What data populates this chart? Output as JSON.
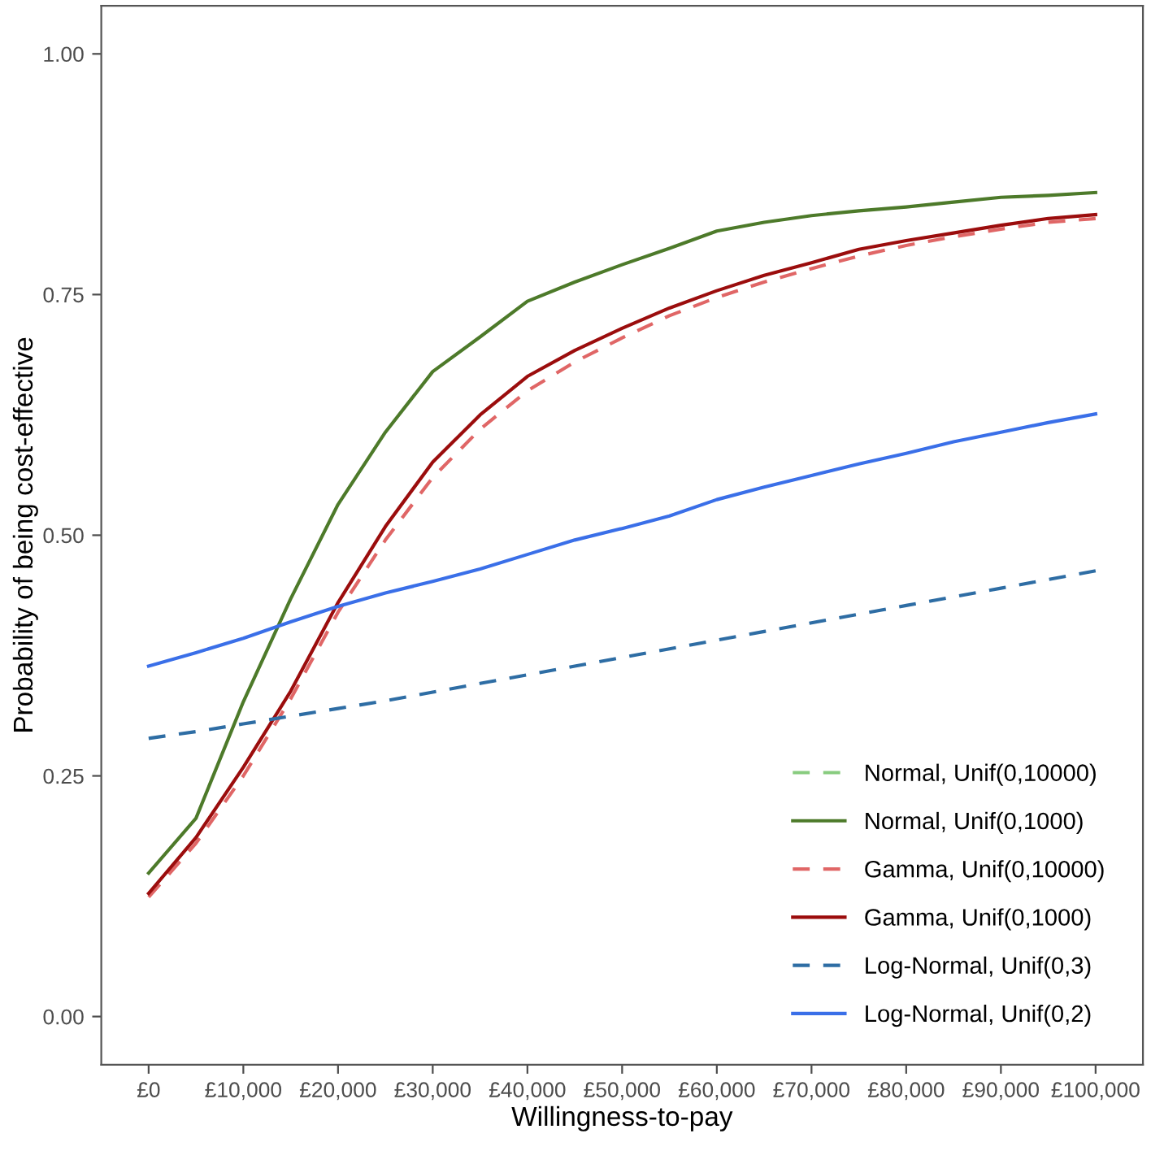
{
  "chart_data": {
    "type": "line",
    "xlabel": "Willingness-to-pay",
    "ylabel": "Probability of being cost-effective",
    "x": [
      0,
      5000,
      10000,
      15000,
      20000,
      25000,
      30000,
      35000,
      40000,
      45000,
      50000,
      55000,
      60000,
      65000,
      70000,
      75000,
      80000,
      85000,
      90000,
      95000,
      100000
    ],
    "xlim": [
      -5000,
      105000
    ],
    "xticks": [
      {
        "value": 0,
        "label": "£0"
      },
      {
        "value": 10000,
        "label": "£10,000"
      },
      {
        "value": 20000,
        "label": "£20,000"
      },
      {
        "value": 30000,
        "label": "£30,000"
      },
      {
        "value": 40000,
        "label": "£40,000"
      },
      {
        "value": 50000,
        "label": "£50,000"
      },
      {
        "value": 60000,
        "label": "£60,000"
      },
      {
        "value": 70000,
        "label": "£70,000"
      },
      {
        "value": 80000,
        "label": "£80,000"
      },
      {
        "value": 90000,
        "label": "£90,000"
      },
      {
        "value": 100000,
        "label": "£100,000"
      }
    ],
    "ylim": [
      -0.05,
      1.05
    ],
    "yticks": [
      {
        "value": 0,
        "label": "0.00"
      },
      {
        "value": 0.25,
        "label": "0.25"
      },
      {
        "value": 0.5,
        "label": "0.50"
      },
      {
        "value": 0.75,
        "label": "0.75"
      },
      {
        "value": 1,
        "label": "1.00"
      }
    ],
    "grid": false,
    "legend": "bottom right",
    "marker": "none",
    "series": [
      {
        "name": "Normal, Unif(0,10000)",
        "color": "#88cc7f",
        "line_style": "dashed",
        "values": [
          null,
          null,
          null,
          null,
          null,
          null,
          null,
          null,
          null,
          null,
          null,
          null,
          null,
          null,
          null,
          null,
          null,
          null,
          null,
          null,
          null
        ]
      },
      {
        "name": "Normal, Unif(0,1000)",
        "color": "#4d7a2a",
        "line_style": "solid",
        "values": [
          0.149,
          0.206,
          0.327,
          0.434,
          0.532,
          0.607,
          0.67,
          0.706,
          0.743,
          0.763,
          0.781,
          0.798,
          0.816,
          0.825,
          0.832,
          0.837,
          0.841,
          0.846,
          0.851,
          0.853,
          0.856
        ]
      },
      {
        "name": "Gamma, Unif(0,10000)",
        "color": "#e06666",
        "line_style": "dashed",
        "values": [
          0.124,
          0.18,
          0.25,
          0.33,
          0.42,
          0.495,
          0.56,
          0.61,
          0.65,
          0.68,
          0.705,
          0.728,
          0.747,
          0.763,
          0.777,
          0.79,
          0.801,
          0.81,
          0.818,
          0.825,
          0.829
        ]
      },
      {
        "name": "Gamma, Unif(0,1000)",
        "color": "#9b0d0d",
        "line_style": "solid",
        "values": [
          0.128,
          0.186,
          0.259,
          0.338,
          0.43,
          0.509,
          0.576,
          0.625,
          0.665,
          0.692,
          0.715,
          0.736,
          0.754,
          0.77,
          0.783,
          0.797,
          0.806,
          0.814,
          0.822,
          0.829,
          0.833
        ]
      },
      {
        "name": "Log-Normal, Unif(0,3)",
        "color": "#2e6da4",
        "line_style": "dashed",
        "values": [
          0.289,
          0.296,
          0.304,
          0.312,
          0.32,
          0.328,
          0.337,
          0.346,
          0.355,
          0.364,
          0.373,
          0.382,
          0.391,
          0.4,
          0.409,
          0.418,
          0.427,
          0.436,
          0.445,
          0.454,
          0.463
        ]
      },
      {
        "name": "Log-Normal, Unif(0,2)",
        "color": "#3a6fe8",
        "line_style": "solid",
        "values": [
          0.364,
          0.378,
          0.393,
          0.41,
          0.426,
          0.44,
          0.452,
          0.465,
          0.48,
          0.495,
          0.507,
          0.52,
          0.537,
          0.55,
          0.562,
          0.574,
          0.585,
          0.597,
          0.607,
          0.617,
          0.626
        ]
      }
    ]
  }
}
